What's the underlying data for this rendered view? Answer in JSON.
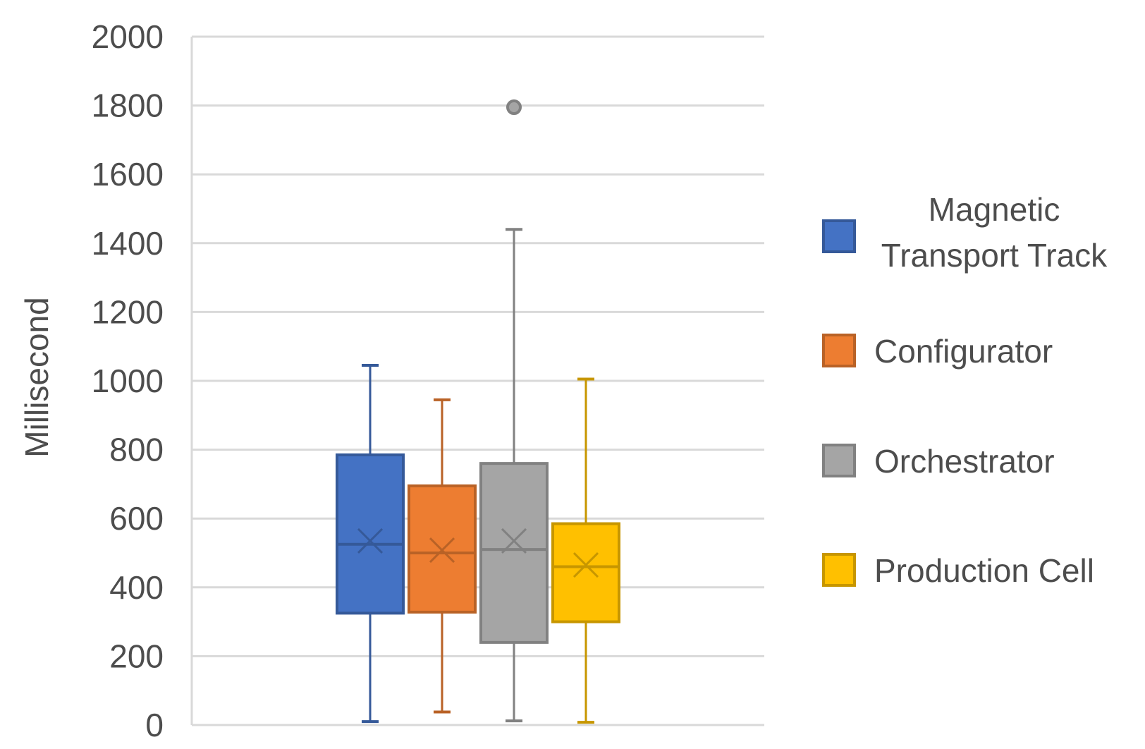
{
  "chart_data": {
    "type": "box",
    "title": "",
    "xlabel": "",
    "ylabel": "Millisecond",
    "ylim": [
      0,
      2000
    ],
    "yticks": [
      "2000",
      "1800",
      "1600",
      "1400",
      "1200",
      "1000",
      "800",
      "600",
      "400",
      "200",
      "0"
    ],
    "grid": true,
    "legend_position": "right",
    "series": [
      {
        "name_lines": [
          "Magnetic",
          "Transport Track"
        ],
        "name": "Magnetic Transport Track",
        "color": "#4472C4",
        "min": 10,
        "q1": 325,
        "median": 525,
        "q3": 785,
        "max": 1045,
        "mean": 535,
        "outliers": []
      },
      {
        "name_lines": [
          "Configurator"
        ],
        "name": "Configurator",
        "color": "#ED7D31",
        "min": 38,
        "q1": 328,
        "median": 500,
        "q3": 695,
        "max": 945,
        "mean": 508,
        "outliers": []
      },
      {
        "name_lines": [
          "Orchestrator"
        ],
        "name": "Orchestrator",
        "color": "#A5A5A5",
        "min": 12,
        "q1": 240,
        "median": 510,
        "q3": 760,
        "max": 1440,
        "mean": 535,
        "outliers": [
          1795
        ]
      },
      {
        "name_lines": [
          "Production Cell"
        ],
        "name": "Production Cell",
        "color": "#FFC000",
        "min": 8,
        "q1": 300,
        "median": 460,
        "q3": 585,
        "max": 1005,
        "mean": 465,
        "outliers": []
      }
    ]
  }
}
